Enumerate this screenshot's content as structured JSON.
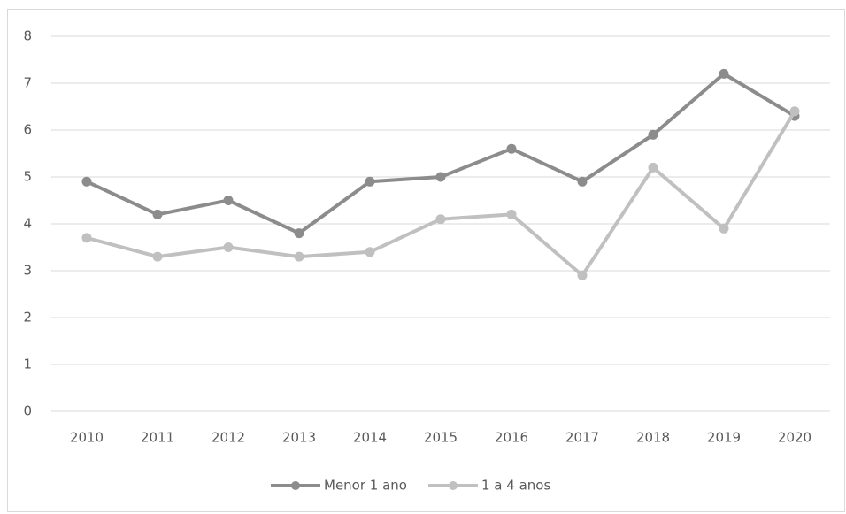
{
  "chart_data": {
    "type": "line",
    "categories": [
      "2010",
      "2011",
      "2012",
      "2013",
      "2014",
      "2015",
      "2016",
      "2017",
      "2018",
      "2019",
      "2020"
    ],
    "series": [
      {
        "name": "Menor 1 ano",
        "color": "#8c8c8c",
        "values": [
          4.9,
          4.2,
          4.5,
          3.8,
          4.9,
          5.0,
          5.6,
          4.9,
          5.9,
          7.2,
          6.3
        ]
      },
      {
        "name": "1 a 4 anos",
        "color": "#c0c0c0",
        "values": [
          3.7,
          3.3,
          3.5,
          3.3,
          3.4,
          4.1,
          4.2,
          2.9,
          5.2,
          3.9,
          6.4
        ]
      }
    ],
    "ylim": [
      0,
      8
    ],
    "yticks": [
      0,
      1,
      2,
      3,
      4,
      5,
      6,
      7,
      8
    ],
    "grid": true,
    "legend": "bottom"
  }
}
